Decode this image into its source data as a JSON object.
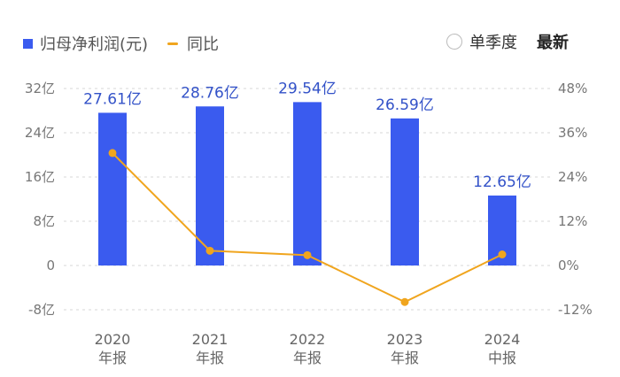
{
  "legend": {
    "bar_label": "归母净利润(元)",
    "line_label": "同比"
  },
  "controls": {
    "quarter_label": "单季度",
    "latest_label": "最新"
  },
  "colors": {
    "bar": "#3a5bef",
    "line": "#f0a51e",
    "label": "#3352c8"
  },
  "chart_data": {
    "type": "bar",
    "categories": [
      [
        "2020",
        "年报"
      ],
      [
        "2021",
        "年报"
      ],
      [
        "2022",
        "年报"
      ],
      [
        "2023",
        "年报"
      ],
      [
        "2024",
        "中报"
      ]
    ],
    "series": [
      {
        "name": "归母净利润(元)",
        "type": "bar",
        "values": [
          27.61,
          28.76,
          29.54,
          26.59,
          12.65
        ],
        "labels": [
          "27.61亿",
          "28.76亿",
          "29.54亿",
          "26.59亿",
          "12.65亿"
        ],
        "axis": "left"
      },
      {
        "name": "同比",
        "type": "line",
        "values": [
          30.5,
          4.0,
          2.8,
          -9.9,
          3.0
        ],
        "axis": "right"
      }
    ],
    "y_left": {
      "ticks": [
        32,
        24,
        16,
        8,
        0,
        -8
      ],
      "tick_labels": [
        "32亿",
        "24亿",
        "16亿",
        "8亿",
        "0",
        "-8亿"
      ],
      "range": [
        -8,
        32
      ]
    },
    "y_right": {
      "ticks": [
        48,
        36,
        24,
        12,
        0,
        -12
      ],
      "tick_labels": [
        "48%",
        "36%",
        "24%",
        "12%",
        "0%",
        "-12%"
      ],
      "range": [
        -12,
        48
      ]
    },
    "grid": true,
    "legend_position": "top-left"
  }
}
